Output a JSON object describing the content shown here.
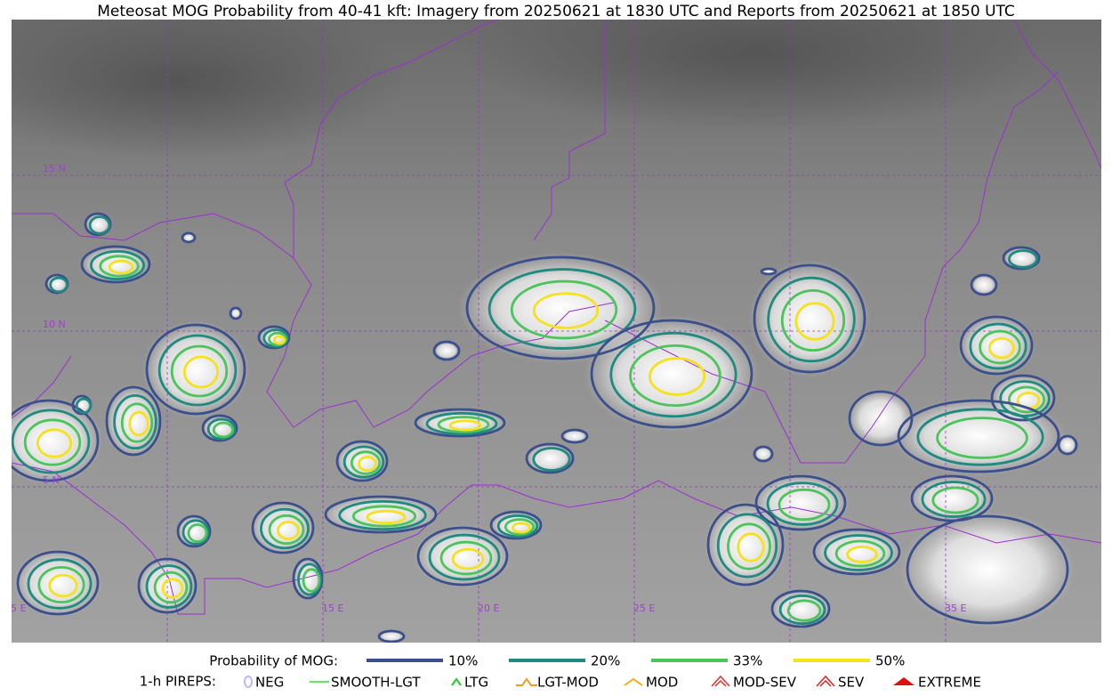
{
  "title": "Meteosat MOG Probability from 40-41 kft: Imagery from 20250621 at 1830 UTC and Reports from 20250621 at 1850 UTC",
  "map": {
    "lat_labels": [
      "15 N",
      "10 N",
      "5 N"
    ],
    "lon_labels": [
      "5 E",
      "15 E",
      "20 E",
      "25 E",
      "35 E"
    ]
  },
  "legend": {
    "probability": {
      "label": "Probability of MOG:",
      "items": [
        {
          "label": "10%",
          "color": "#3b4f8c"
        },
        {
          "label": "20%",
          "color": "#1f8a80"
        },
        {
          "label": "33%",
          "color": "#4cc45c"
        },
        {
          "label": "50%",
          "color": "#f5e11e"
        }
      ]
    },
    "pireps": {
      "label": "1-h PIREPS:",
      "items": [
        {
          "label": "NEG",
          "color": "#b8b8ff"
        },
        {
          "label": "SMOOTH-LGT",
          "color": "#33dd33"
        },
        {
          "label": "LTG",
          "color": "#22cc22"
        },
        {
          "label": "LGT-MOD",
          "color": "#f0a020"
        },
        {
          "label": "MOD",
          "color": "#f0b020"
        },
        {
          "label": "MOD-SEV",
          "color": "#e83030"
        },
        {
          "label": "SEV",
          "color": "#e02020"
        },
        {
          "label": "EXTREME",
          "color": "#e01010"
        }
      ]
    }
  }
}
